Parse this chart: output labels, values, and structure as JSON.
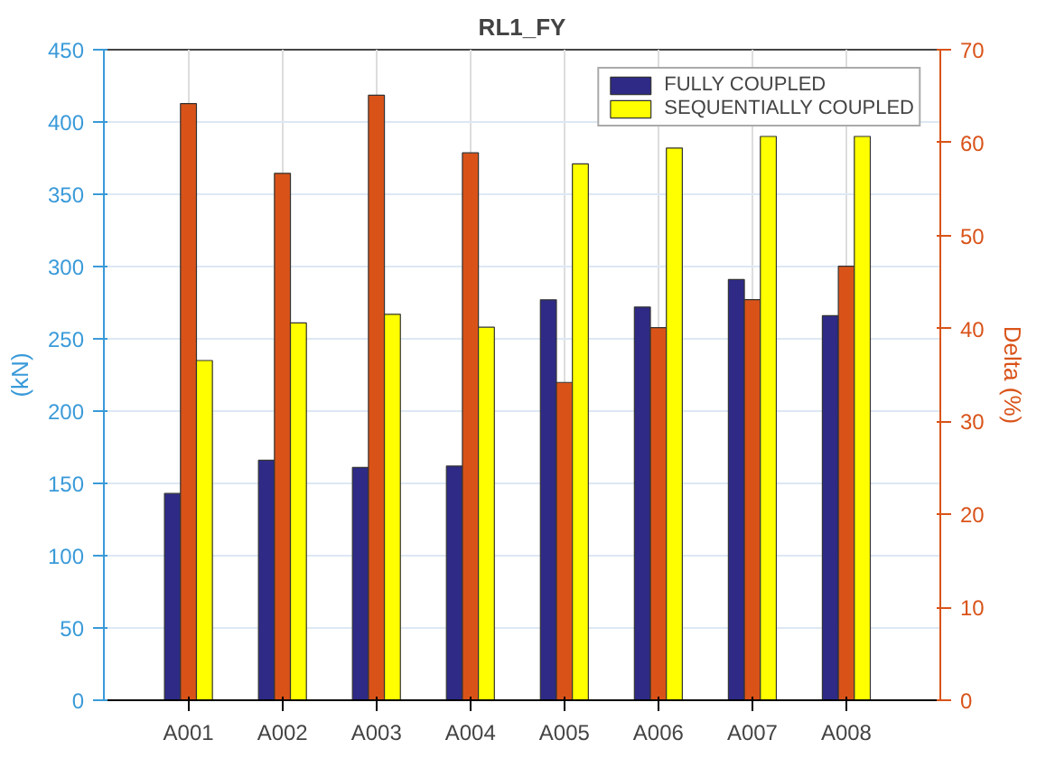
{
  "chart_data": {
    "type": "bar",
    "title": "RL1_FY",
    "ylabel": "(kN)",
    "y2label": "Delta (%)",
    "categories": [
      "A001",
      "A002",
      "A003",
      "A004",
      "A005",
      "A006",
      "A007",
      "A008"
    ],
    "series": [
      {
        "name": "FULLY COUPLED",
        "color": "#2e2a86",
        "values": [
          143,
          166,
          161,
          162,
          277,
          272,
          291,
          266
        ]
      },
      {
        "color": "#d95319",
        "axis": "y2",
        "values": [
          64.2,
          56.7,
          65.1,
          58.9,
          34.2,
          40.1,
          43.1,
          46.7
        ]
      },
      {
        "name": "SEQUENTIALLY COUPLED",
        "color": "#ffff00",
        "values": [
          235,
          261,
          267,
          258,
          371,
          382,
          390,
          390
        ]
      }
    ],
    "ylim": [
      0,
      450
    ],
    "yticks": [
      0,
      50,
      100,
      150,
      200,
      250,
      300,
      350,
      400,
      450
    ],
    "y2lim": [
      0,
      70
    ],
    "y2ticks": [
      0,
      10,
      20,
      30,
      40,
      50,
      60,
      70
    ],
    "grid": true,
    "legend": "top right"
  }
}
